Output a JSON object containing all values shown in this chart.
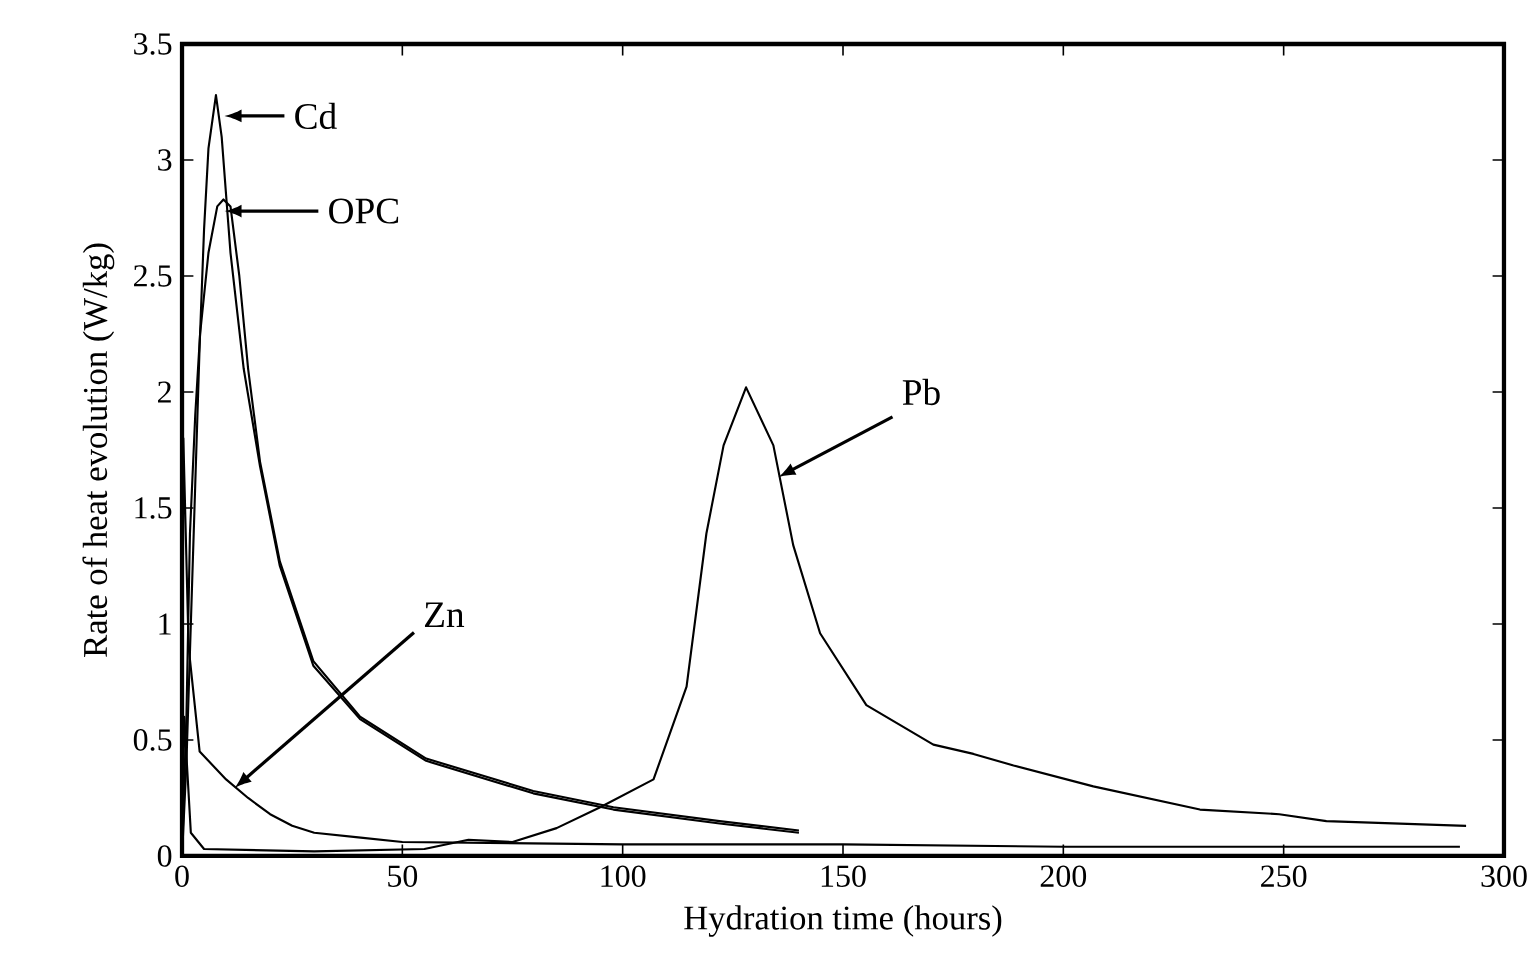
{
  "chart_data": {
    "type": "line",
    "xlabel": "Hydration time (hours)",
    "ylabel": "Rate of heat evolution (W/kg)",
    "xlim": [
      0,
      300
    ],
    "ylim": [
      0,
      3.5
    ],
    "xticks": [
      0,
      50,
      100,
      150,
      200,
      250,
      300
    ],
    "yticks": [
      0,
      0.5,
      1,
      1.5,
      2,
      2.5,
      3,
      3.5
    ],
    "grid": false,
    "marker": "none",
    "line_style": "solid",
    "series": [
      {
        "color": "#000000",
        "x": [
          0,
          1,
          2,
          3,
          4,
          5,
          6,
          7.7,
          9,
          11,
          14,
          17.7,
          22.2,
          29.8,
          40.4,
          55.4,
          79.7,
          97.9,
          122,
          140
        ],
        "values": [
          0,
          0.4,
          1.0,
          1.6,
          2.2,
          2.7,
          3.05,
          3.28,
          3.1,
          2.6,
          2.1,
          1.68,
          1.25,
          0.82,
          0.59,
          0.41,
          0.27,
          0.2,
          0.14,
          0.1
        ]
      },
      {
        "color": "#000000",
        "x": [
          0,
          1,
          1.8,
          3,
          4.1,
          6,
          8,
          9.4,
          11,
          13,
          15,
          17.7,
          22.2,
          29.8,
          40.4,
          55.4,
          79.7,
          97.9,
          122,
          140
        ],
        "values": [
          0,
          0.6,
          1.39,
          1.9,
          2.25,
          2.6,
          2.8,
          2.83,
          2.8,
          2.5,
          2.1,
          1.7,
          1.27,
          0.84,
          0.6,
          0.42,
          0.28,
          0.21,
          0.15,
          0.11
        ]
      },
      {
        "color": "#000000",
        "x": [
          0,
          0.3,
          1.5,
          4,
          10,
          15,
          20,
          25,
          30,
          40,
          50,
          100,
          150,
          200,
          250,
          290
        ],
        "values": [
          0,
          1.8,
          0.9,
          0.45,
          0.33,
          0.25,
          0.18,
          0.13,
          0.1,
          0.08,
          0.06,
          0.05,
          0.05,
          0.04,
          0.04,
          0.04
        ]
      },
      {
        "color": "#000000",
        "x": [
          0,
          0.5,
          2,
          5,
          30,
          55,
          65,
          75,
          85,
          94.9,
          107,
          114.5,
          119,
          122.9,
          128,
          134.2,
          138.7,
          144.8,
          155.3,
          170.5,
          179.6,
          188.7,
          206.8,
          231,
          249,
          259.7,
          291.4
        ],
        "values": [
          0,
          0.6,
          0.1,
          0.03,
          0.02,
          0.03,
          0.07,
          0.06,
          0.12,
          0.21,
          0.33,
          0.73,
          1.39,
          1.77,
          2.02,
          1.77,
          1.34,
          0.96,
          0.65,
          0.48,
          0.44,
          0.39,
          0.3,
          0.2,
          0.18,
          0.15,
          0.13
        ]
      }
    ],
    "annotations": [
      {
        "text": "Cd",
        "x": 10,
        "y": 3.19
      },
      {
        "text": "OPC",
        "x": 10,
        "y": 2.78
      },
      {
        "text": "Zn",
        "x": 12.3,
        "y": 0.3
      },
      {
        "text": "Pb",
        "x": 135.7,
        "y": 1.64
      }
    ]
  }
}
